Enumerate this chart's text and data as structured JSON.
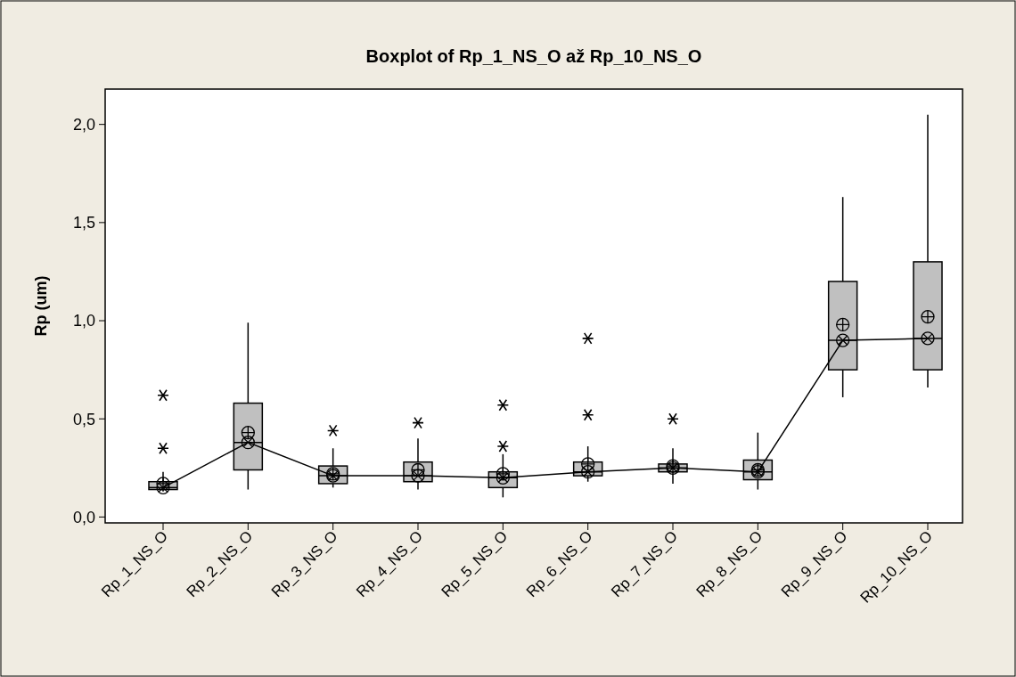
{
  "chart_data": {
    "type": "box",
    "title": "Boxplot of Rp_1_NS_O až Rp_10_NS_O",
    "ylabel": "Rp (um)",
    "categories": [
      "Rp_1_NS_O",
      "Rp_2_NS_O",
      "Rp_3_NS_O",
      "Rp_4_NS_O",
      "Rp_5_NS_O",
      "Rp_6_NS_O",
      "Rp_7_NS_O",
      "Rp_8_NS_O",
      "Rp_9_NS_O",
      "Rp_10_NS_O"
    ],
    "ylim": [
      -0.03,
      2.18
    ],
    "yticks": [
      {
        "value": 0,
        "label": "0,0"
      },
      {
        "value": 0.5,
        "label": "0,5"
      },
      {
        "value": 1,
        "label": "1,0"
      },
      {
        "value": 1.5,
        "label": "1,5"
      },
      {
        "value": 2,
        "label": "2,0"
      }
    ],
    "grid": false,
    "series": [
      {
        "color": "#c0c0c0",
        "boxes": [
          {
            "low": 0.13,
            "q1": 0.14,
            "median": 0.15,
            "q3": 0.18,
            "high": 0.23,
            "mean": 0.17,
            "outliers": [
              0.35,
              0.62
            ]
          },
          {
            "low": 0.14,
            "q1": 0.24,
            "median": 0.38,
            "q3": 0.58,
            "high": 0.99,
            "mean": 0.43
          },
          {
            "low": 0.15,
            "q1": 0.17,
            "median": 0.21,
            "q3": 0.26,
            "high": 0.35,
            "mean": 0.22,
            "outliers": [
              0.44
            ]
          },
          {
            "low": 0.14,
            "q1": 0.18,
            "median": 0.21,
            "q3": 0.28,
            "high": 0.4,
            "mean": 0.24,
            "outliers": [
              0.48
            ]
          },
          {
            "low": 0.1,
            "q1": 0.15,
            "median": 0.2,
            "q3": 0.23,
            "high": 0.32,
            "mean": 0.22,
            "outliers": [
              0.36,
              0.57
            ]
          },
          {
            "low": 0.18,
            "q1": 0.21,
            "median": 0.23,
            "q3": 0.28,
            "high": 0.36,
            "mean": 0.27,
            "outliers": [
              0.52,
              0.91
            ]
          },
          {
            "low": 0.17,
            "q1": 0.23,
            "median": 0.25,
            "q3": 0.27,
            "high": 0.35,
            "mean": 0.26,
            "outliers": [
              0.5
            ]
          },
          {
            "low": 0.14,
            "q1": 0.19,
            "median": 0.23,
            "q3": 0.29,
            "high": 0.43,
            "mean": 0.24
          },
          {
            "low": 0.61,
            "q1": 0.75,
            "median": 0.9,
            "q3": 1.2,
            "high": 1.63,
            "mean": 0.98
          },
          {
            "low": 0.66,
            "q1": 0.75,
            "median": 0.91,
            "q3": 1.3,
            "high": 2.05,
            "mean": 1.02
          }
        ]
      },
      {
        "type": "line",
        "color": "#000000",
        "marker": "circle",
        "line_style": "solid",
        "values": [
          0.15,
          0.38,
          0.21,
          0.21,
          0.2,
          0.23,
          0.25,
          0.23,
          0.9,
          0.91
        ]
      }
    ]
  }
}
